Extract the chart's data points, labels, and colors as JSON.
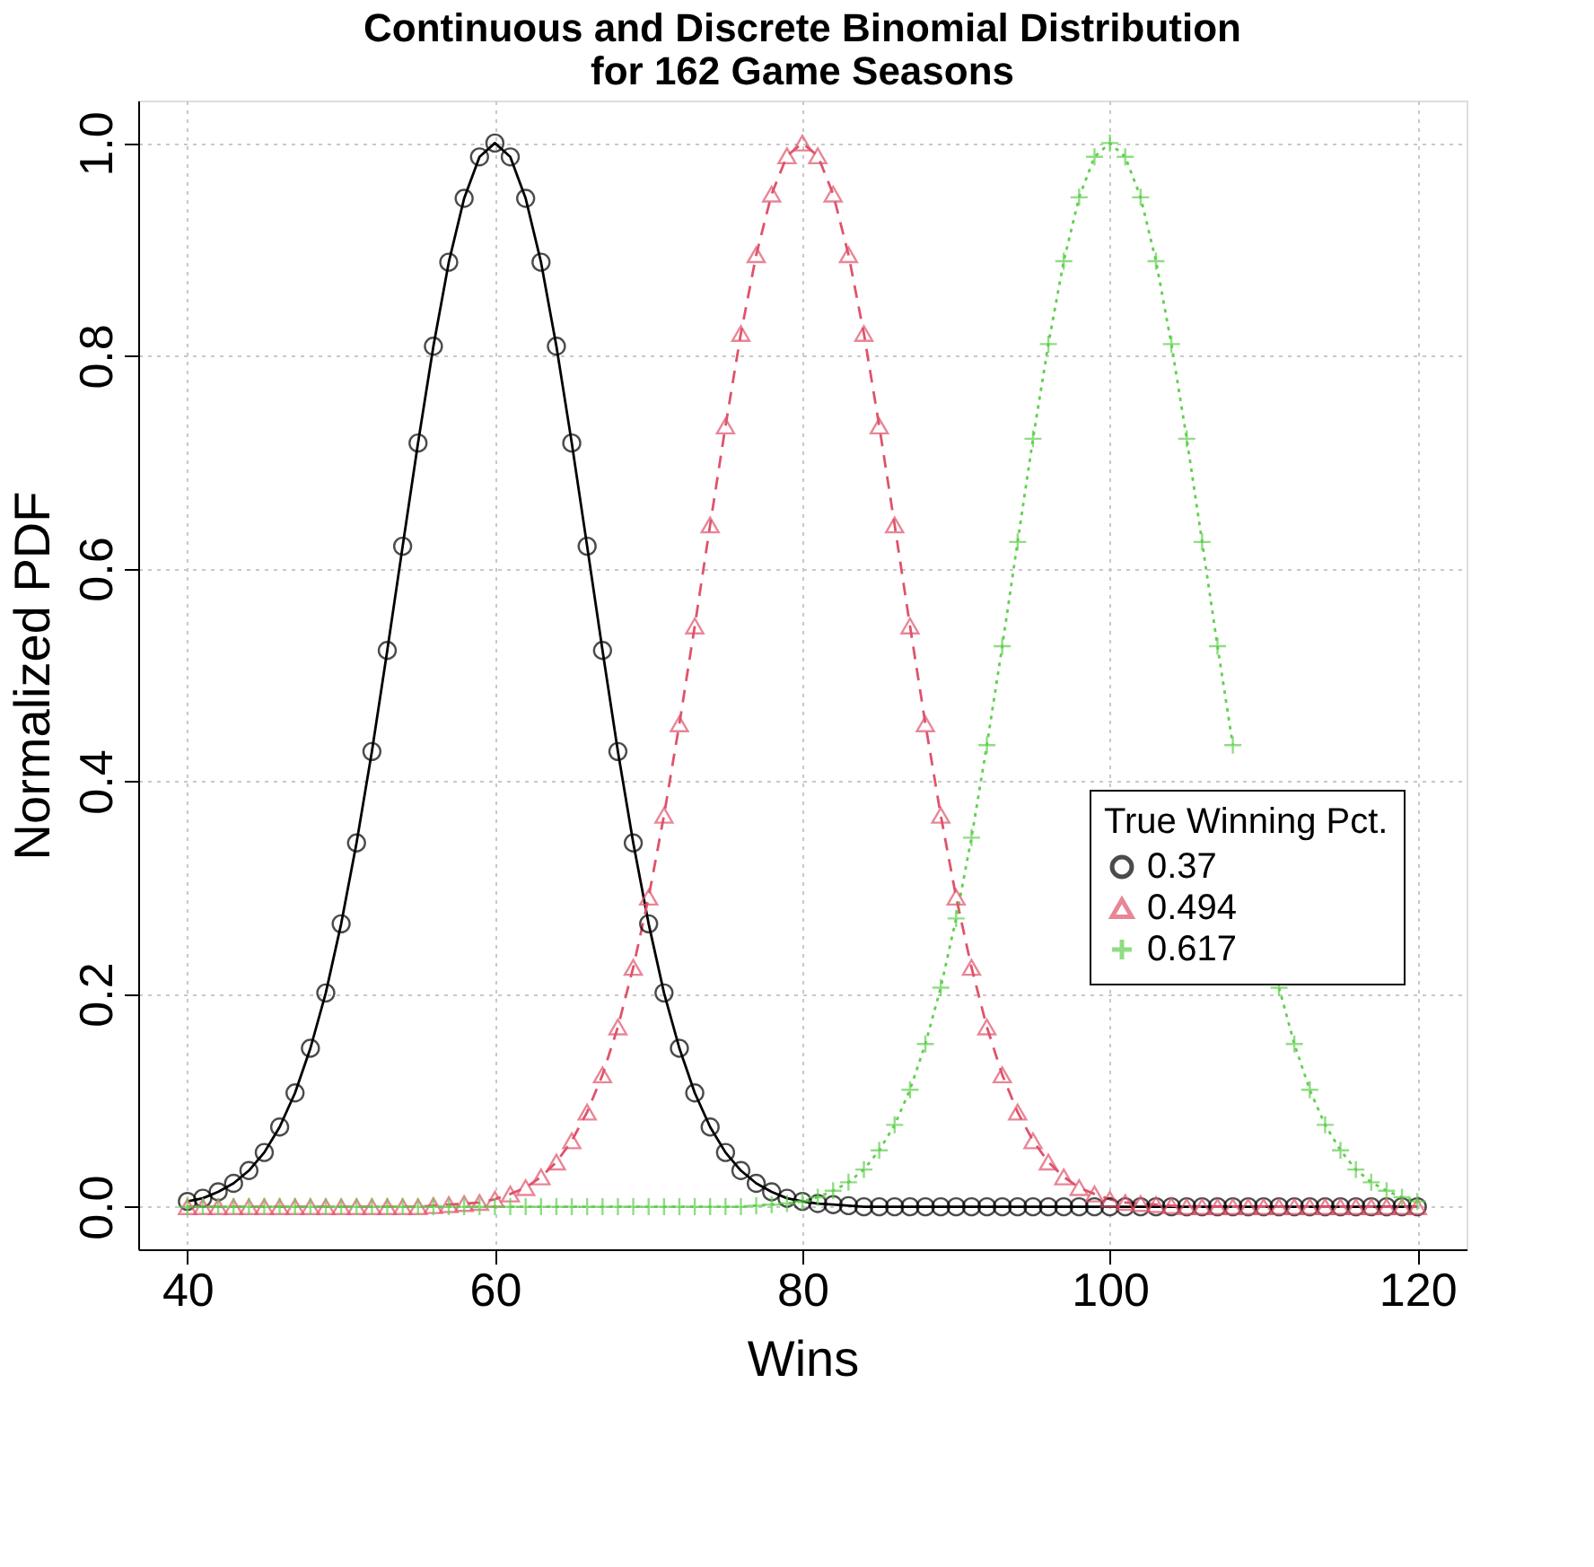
{
  "chart_data": {
    "type": "line",
    "title": "Continuous and Discrete Binomial Distribution\nfor 162 Game Seasons",
    "xlabel": "Wins",
    "ylabel": "Normalized PDF",
    "legend_title": "True Winning Pct.",
    "legend": "right",
    "grid": true,
    "x": [
      40,
      41,
      42,
      43,
      44,
      45,
      46,
      47,
      48,
      49,
      50,
      51,
      52,
      53,
      54,
      55,
      56,
      57,
      58,
      59,
      60,
      61,
      62,
      63,
      64,
      65,
      66,
      67,
      68,
      69,
      70,
      71,
      72,
      73,
      74,
      75,
      76,
      77,
      78,
      79,
      80,
      81,
      82,
      83,
      84,
      85,
      86,
      87,
      88,
      89,
      90,
      91,
      92,
      93,
      94,
      95,
      96,
      97,
      98,
      99,
      100,
      101,
      102,
      103,
      104,
      105,
      106,
      107,
      108,
      109,
      110,
      111,
      112,
      113,
      114,
      115,
      116,
      117,
      118,
      119,
      120
    ],
    "xlim": [
      36.8,
      123.2
    ],
    "xticks": [
      40,
      60,
      80,
      100,
      120
    ],
    "ylim": [
      -0.04,
      1.04
    ],
    "yticks": [
      {
        "value": 0,
        "label": "0.0"
      },
      {
        "value": 0.2,
        "label": "0.2"
      },
      {
        "value": 0.4,
        "label": "0.4"
      },
      {
        "value": 0.6,
        "label": "0.6"
      },
      {
        "value": 0.8,
        "label": "0.8"
      },
      {
        "value": 1,
        "label": "1.0"
      }
    ],
    "series": [
      {
        "name": "0.37",
        "color": "#000000",
        "marker": "circle",
        "line_style": "solid",
        "values": [
          0.005,
          0.008,
          0.014,
          0.022,
          0.034,
          0.051,
          0.075,
          0.107,
          0.149,
          0.201,
          0.266,
          0.342,
          0.428,
          0.523,
          0.621,
          0.718,
          0.809,
          0.888,
          0.948,
          0.987,
          1,
          0.987,
          0.948,
          0.888,
          0.809,
          0.718,
          0.621,
          0.523,
          0.428,
          0.342,
          0.266,
          0.201,
          0.149,
          0.107,
          0.075,
          0.051,
          0.034,
          0.022,
          0.014,
          0.008,
          0.005,
          0.003,
          0.002,
          0.001,
          0,
          0,
          0,
          0,
          0,
          0,
          0,
          0,
          0,
          0,
          0,
          0,
          0,
          0,
          0,
          0,
          0,
          0,
          0,
          0,
          0,
          0,
          0,
          0,
          0,
          0,
          0,
          0,
          0,
          0,
          0,
          0,
          0,
          0,
          0,
          0,
          0
        ]
      },
      {
        "name": "0.494",
        "color": "#df536b",
        "marker": "triangle",
        "line_style": "dashed",
        "values": [
          0,
          0,
          0,
          0,
          0,
          0,
          0,
          0,
          0,
          0,
          0,
          0,
          0,
          0,
          0,
          0,
          0.001,
          0.002,
          0.003,
          0.004,
          0.007,
          0.012,
          0.018,
          0.028,
          0.042,
          0.062,
          0.089,
          0.124,
          0.169,
          0.225,
          0.291,
          0.368,
          0.454,
          0.546,
          0.641,
          0.734,
          0.821,
          0.895,
          0.952,
          0.988,
          1,
          0.988,
          0.952,
          0.895,
          0.821,
          0.734,
          0.641,
          0.546,
          0.454,
          0.368,
          0.291,
          0.225,
          0.169,
          0.124,
          0.089,
          0.062,
          0.042,
          0.028,
          0.018,
          0.012,
          0.007,
          0.004,
          0.003,
          0.002,
          0.001,
          0,
          0,
          0,
          0,
          0,
          0,
          0,
          0,
          0,
          0,
          0,
          0,
          0,
          0,
          0,
          0
        ]
      },
      {
        "name": "0.617",
        "color": "#61d04f",
        "marker": "cross",
        "line_style": "dotted",
        "values": [
          0,
          0,
          0,
          0,
          0,
          0,
          0,
          0,
          0,
          0,
          0,
          0,
          0,
          0,
          0,
          0,
          0,
          0,
          0,
          0,
          0,
          0,
          0,
          0,
          0,
          0,
          0,
          0,
          0,
          0,
          0,
          0,
          0,
          0,
          0,
          0,
          0,
          0.001,
          0.002,
          0.003,
          0.005,
          0.009,
          0.015,
          0.023,
          0.035,
          0.053,
          0.077,
          0.11,
          0.153,
          0.206,
          0.271,
          0.347,
          0.434,
          0.527,
          0.625,
          0.722,
          0.811,
          0.889,
          0.949,
          0.987,
          1,
          0.987,
          0.949,
          0.889,
          0.811,
          0.722,
          0.625,
          0.527,
          0.434,
          null,
          null,
          0.206,
          0.153,
          0.11,
          0.077,
          0.053,
          0.035,
          0.023,
          0.015,
          0.009,
          0.005
        ]
      }
    ]
  }
}
